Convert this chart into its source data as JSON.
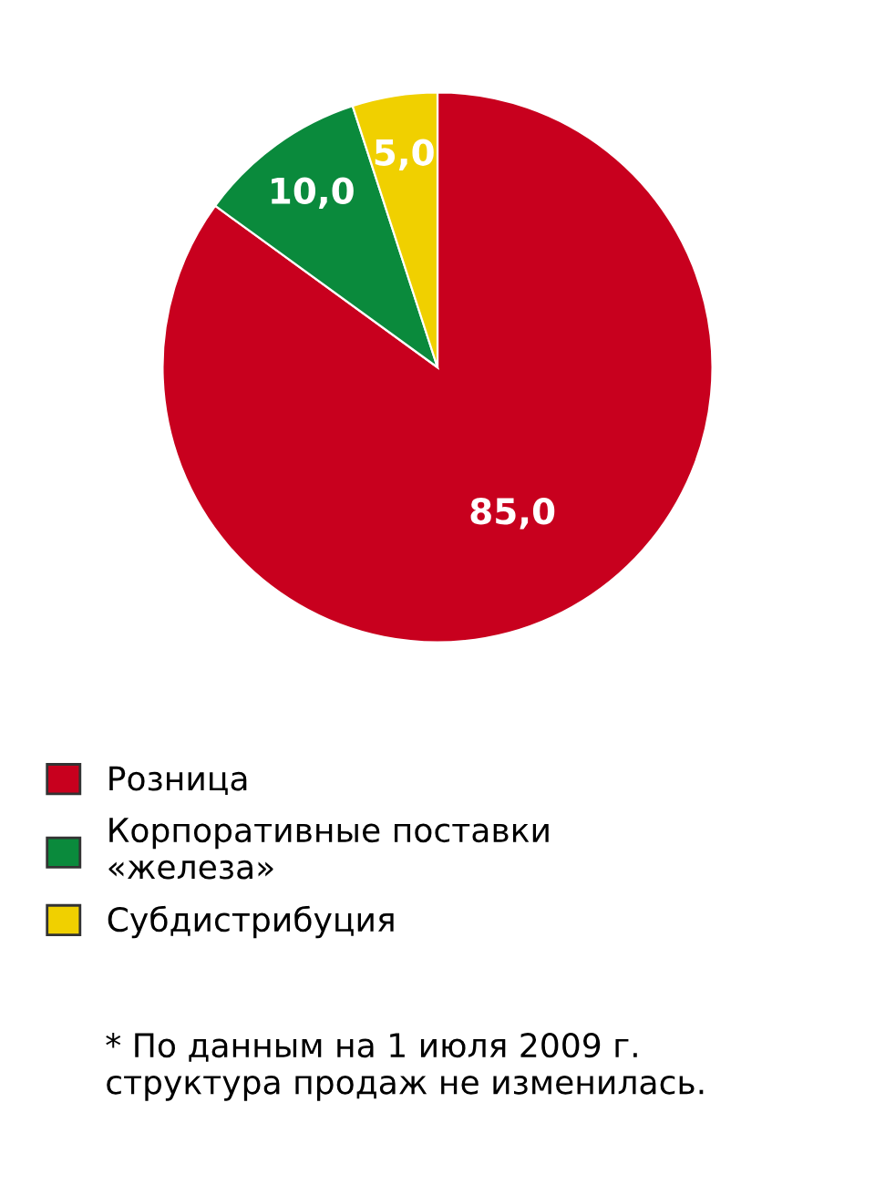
{
  "chart_data": {
    "type": "pie",
    "categories": [
      "Розница",
      "Корпоративные поставки\n«железа»",
      "Субдистрибуция"
    ],
    "values": [
      85,
      10,
      5
    ],
    "colors": [
      "#c8001e",
      "#0a8a3c",
      "#f0d000"
    ],
    "value_labels": [
      "85,0",
      "10,0",
      "5,0"
    ],
    "legend": "bottom",
    "annotations": [
      "* По данным на 1 июля 2009 г.\nструктура продаж не изменилась."
    ]
  }
}
